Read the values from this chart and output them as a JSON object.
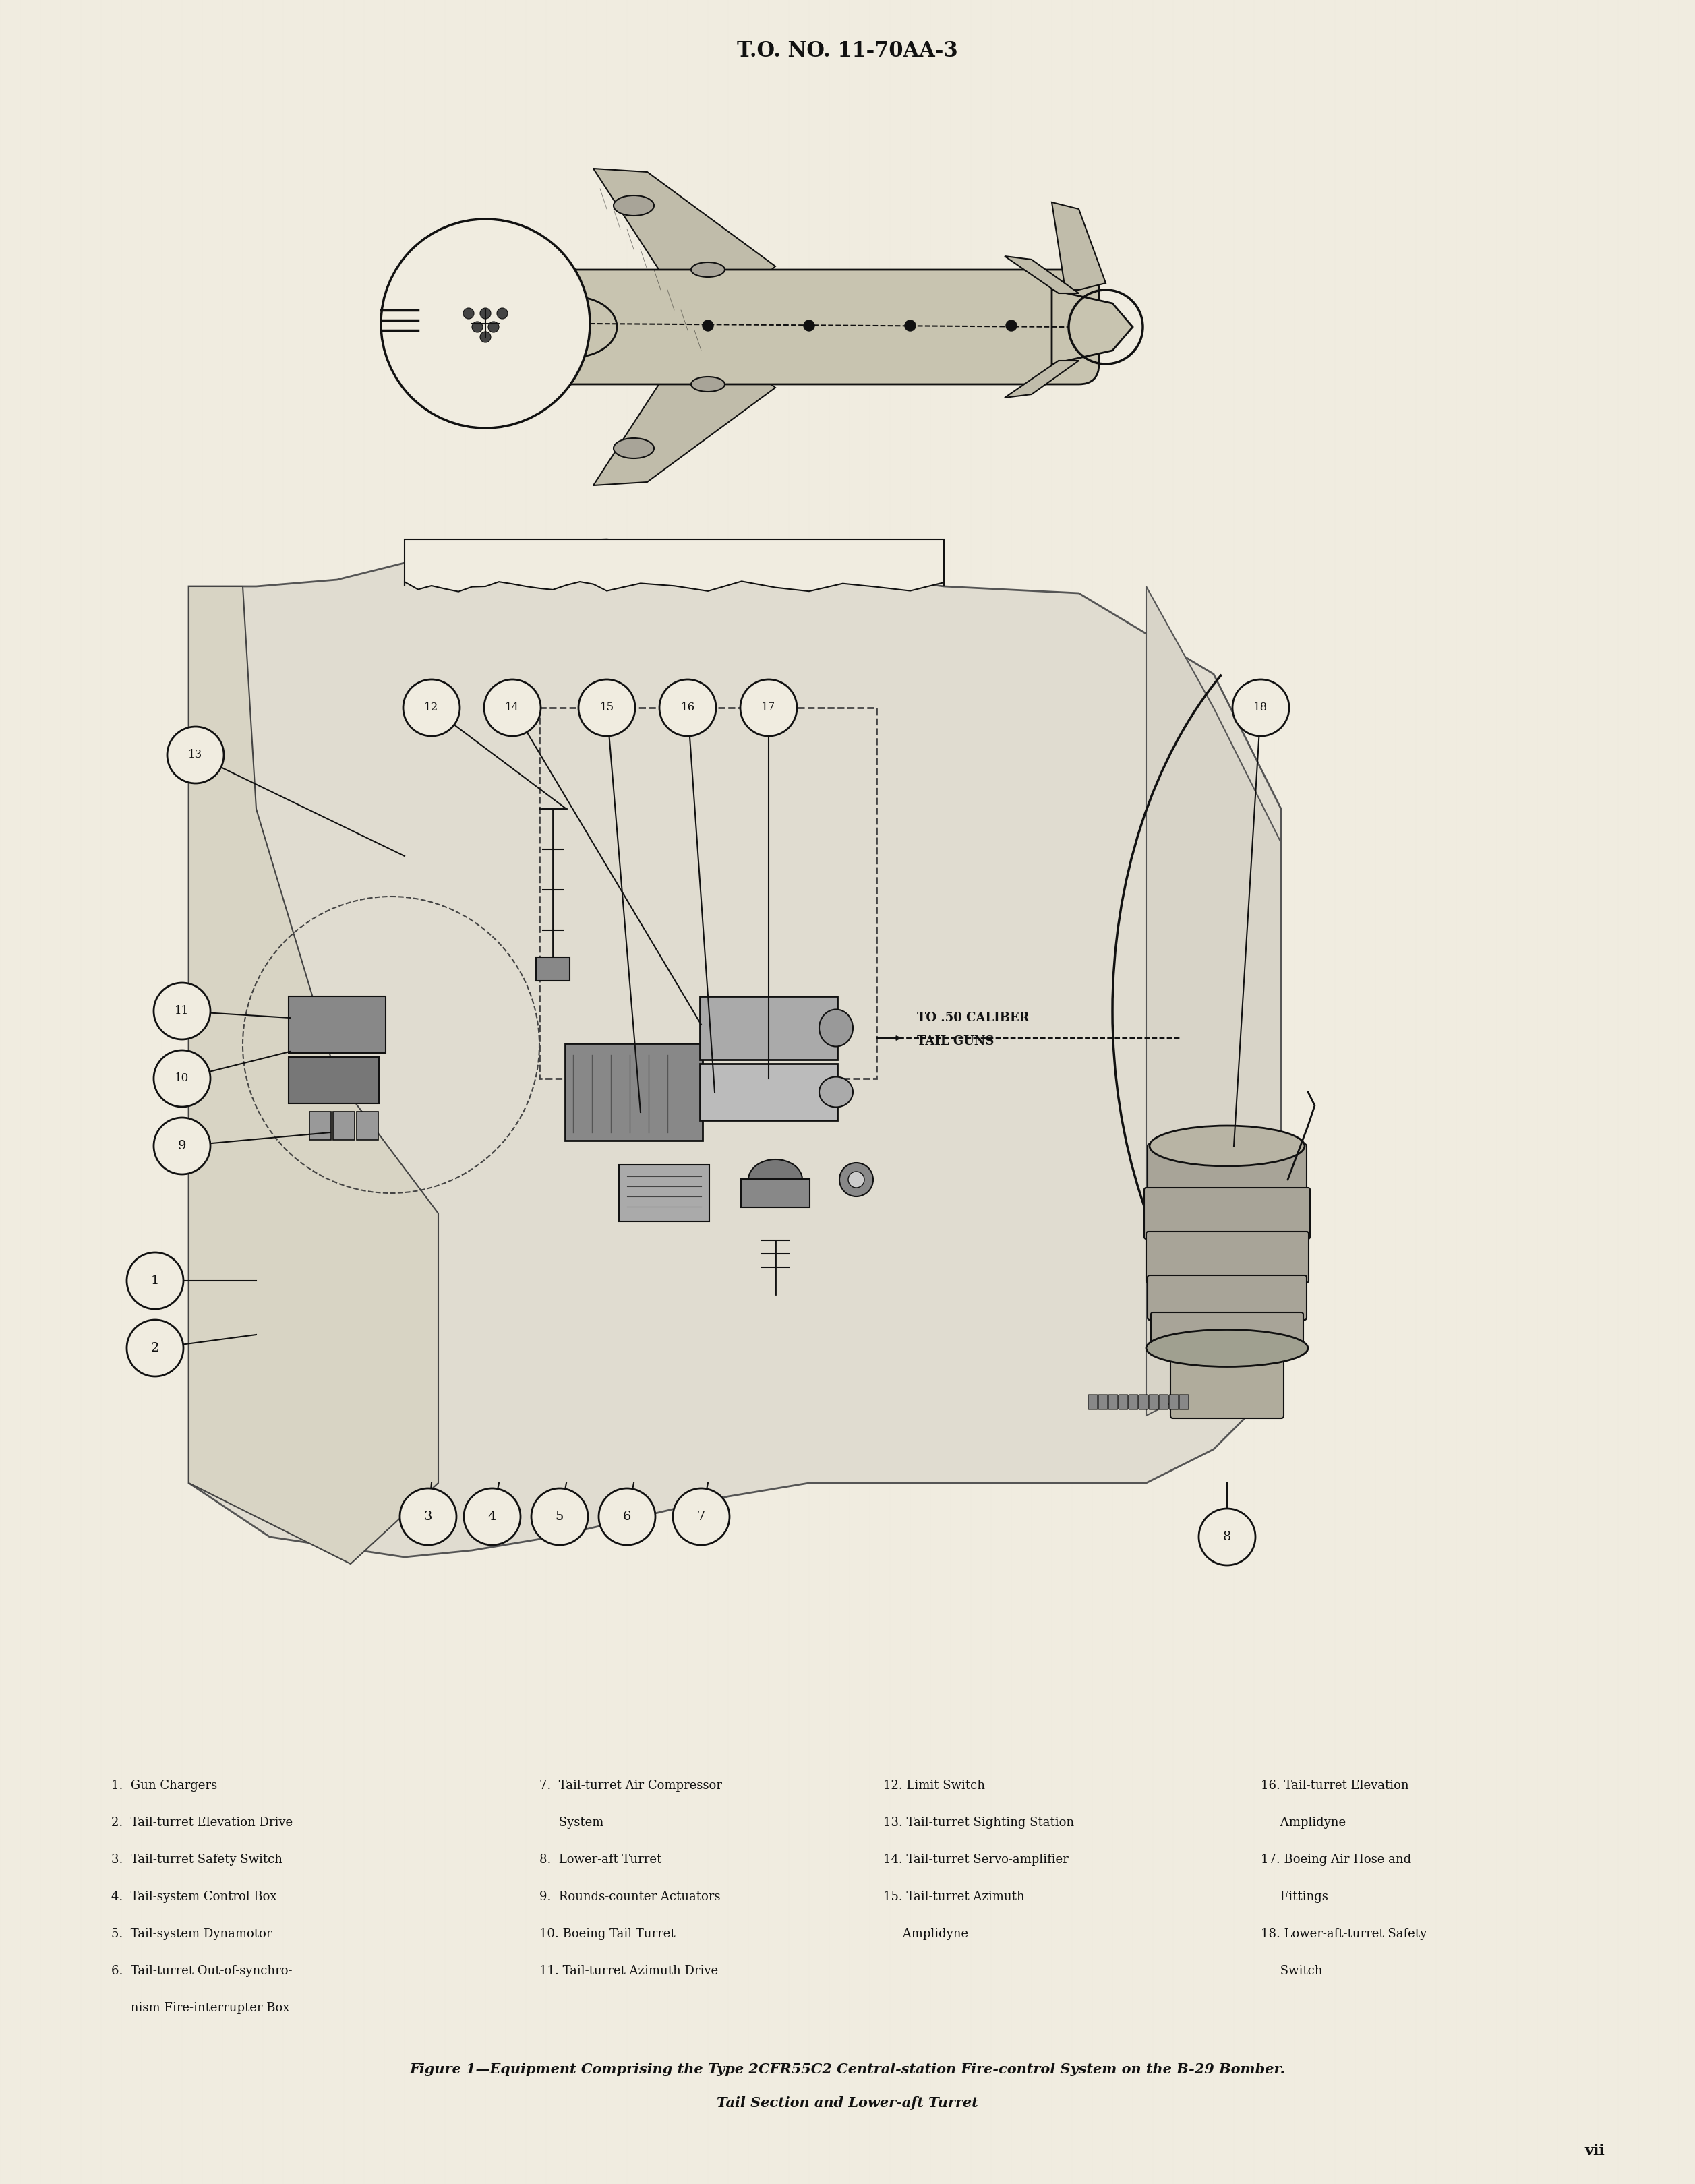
{
  "bg_color": "#f0ece0",
  "text_color": "#111111",
  "header": "T.O. NO. 11-70AA-3",
  "caption_line1": "Figure 1—Equipment Comprising the Type 2CFR55C2 Central-station Fire-control System on the B-29 Bomber.",
  "caption_line2": "Tail Section and Lower-aft Turret",
  "page_num": "vii",
  "col1": [
    "1.  Gun Chargers",
    "2.  Tail-turret Elevation Drive",
    "3.  Tail-turret Safety Switch",
    "4.  Tail-system Control Box",
    "5.  Tail-system Dynamotor",
    "6.  Tail-turret Out-of-synchro-",
    "     nism Fire-interrupter Box"
  ],
  "col2": [
    "7.  Tail-turret Air Compressor",
    "     System",
    "8.  Lower-aft Turret",
    "9.  Rounds-counter Actuators",
    "10. Boeing Tail Turret",
    "11. Tail-turret Azimuth Drive"
  ],
  "col3": [
    "12. Limit Switch",
    "13. Tail-turret Sighting Station",
    "14. Tail-turret Servo-amplifier",
    "15. Tail-turret Azimuth",
    "     Amplidyne"
  ],
  "col4": [
    "16. Tail-turret Elevation",
    "     Amplidyne",
    "17. Boeing Air Hose and",
    "     Fittings",
    "18. Lower-aft-turret Safety",
    "     Switch"
  ]
}
